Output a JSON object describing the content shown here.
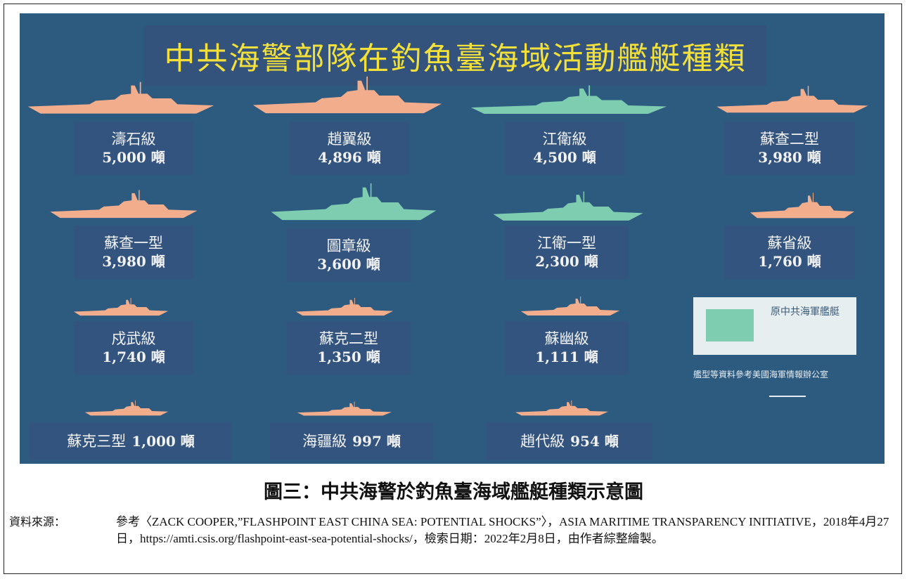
{
  "poster": {
    "title": "中共海警部隊在釣魚臺海域活動艦艇種類",
    "ships": [
      {
        "name": "濤石級",
        "tonnage": "5,000 噸",
        "former_navy": false
      },
      {
        "name": "趙翼級",
        "tonnage": "4,896 噸",
        "former_navy": false
      },
      {
        "name": "江衛級",
        "tonnage": "4,500 噸",
        "former_navy": true
      },
      {
        "name": "蘇查二型",
        "tonnage": "3,980 噸",
        "former_navy": false
      },
      {
        "name": "蘇查一型",
        "tonnage": "3,980 噸",
        "former_navy": false
      },
      {
        "name": "圖章級",
        "tonnage": "3,600 噸",
        "former_navy": true
      },
      {
        "name": "江衛一型",
        "tonnage": "2,300 噸",
        "former_navy": true
      },
      {
        "name": "蘇省級",
        "tonnage": "1,760 噸",
        "former_navy": false
      },
      {
        "name": "戍武級",
        "tonnage": "1,740 噸",
        "former_navy": false
      },
      {
        "name": "蘇克二型",
        "tonnage": "1,350 噸",
        "former_navy": false
      },
      {
        "name": "蘇幽級",
        "tonnage": "1,111 噸",
        "former_navy": false
      },
      {
        "name": "蘇克三型",
        "tonnage": "1,000 噸",
        "former_navy": false
      },
      {
        "name": "海疆級",
        "tonnage": "997 噸",
        "former_navy": false
      },
      {
        "name": "趙代級",
        "tonnage": "954 噸",
        "former_navy": false
      }
    ],
    "legend": {
      "label": "原中共海軍艦艇",
      "note": "艦型等資料參考美國海軍情報辦公室"
    },
    "colors": {
      "background": "#2d5b80",
      "card": "#33547f",
      "title": "#f3e13a",
      "ship_coast_guard": "#f2ad8c",
      "ship_former_navy": "#7fcdb1",
      "legend_box": "#e7eef0"
    }
  },
  "figure": {
    "caption": "圖三：中共海警於釣魚臺海域艦艇種類示意圖"
  },
  "source": {
    "label": "資料來源：",
    "text": "參考〈ZACK COOPER,”FLASHPOINT EAST CHINA SEA: POTENTIAL SHOCKS”〉，ASIA MARITIME TRANSPARENCY INITIATIVE，2018年4月27日，https://amti.csis.org/flashpoint-east-sea-potential-shocks/，檢索日期：2022年2月8日，由作者綜整繪製。"
  }
}
